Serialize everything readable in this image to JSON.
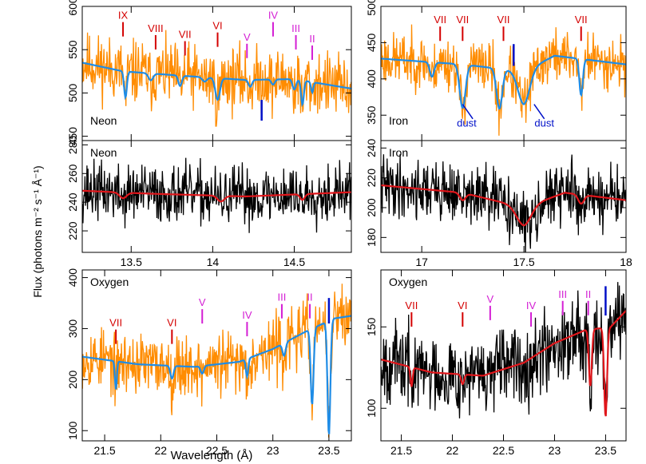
{
  "figure": {
    "ylabel": "Flux (photons m⁻² s⁻¹ Å⁻¹)",
    "xlabel_bottom": "Wavelength (Å)"
  },
  "colors": {
    "orange": "#ff8c00",
    "blue_model": "#1e8ce6",
    "red_model": "#e0161b",
    "red_label": "#d40000",
    "magenta_label": "#d41ed4",
    "dark_blue": "#0010c8",
    "black": "#000000"
  },
  "chart_data": [
    {
      "id": "neon-top",
      "type": "line",
      "panel_label": "Neon",
      "xlim": [
        13.2,
        14.85
      ],
      "ylim": [
        445,
        600
      ],
      "yticks": [
        450,
        500,
        550,
        600
      ],
      "xticks": [
        13.5,
        14,
        14.5
      ],
      "show_xtick_labels": false,
      "data_color": "orange",
      "model_color": "blue_model",
      "baseline": 528,
      "slope": -6,
      "noise": 18,
      "seed": 11,
      "model": {
        "base": [
          [
            13.2,
            535
          ],
          [
            13.45,
            525
          ],
          [
            13.8,
            520
          ],
          [
            14.2,
            515
          ],
          [
            14.5,
            516
          ],
          [
            14.85,
            505
          ]
        ],
        "absorptions": [
          {
            "c": 13.465,
            "d": 30,
            "w": 0.012
          },
          {
            "c": 13.62,
            "d": 8,
            "w": 0.02
          },
          {
            "c": 13.8,
            "d": 12,
            "w": 0.015
          },
          {
            "c": 13.95,
            "d": 5,
            "w": 0.02
          },
          {
            "c": 14.03,
            "d": 25,
            "w": 0.02
          },
          {
            "c": 14.23,
            "d": 8,
            "w": 0.015
          },
          {
            "c": 14.37,
            "d": 6,
            "w": 0.015
          },
          {
            "c": 14.5,
            "d": 12,
            "w": 0.015
          },
          {
            "c": 14.55,
            "d": 28,
            "w": 0.012
          },
          {
            "c": 14.61,
            "d": 12,
            "w": 0.01
          }
        ]
      },
      "ion_labels": [
        {
          "text": "IX",
          "x": 13.45,
          "color": "red_label",
          "y": 580
        },
        {
          "text": "VIII",
          "x": 13.65,
          "color": "red_label",
          "y": 565
        },
        {
          "text": "VII",
          "x": 13.83,
          "color": "red_label",
          "y": 558
        },
        {
          "text": "VI",
          "x": 14.03,
          "color": "red_label",
          "y": 568
        },
        {
          "text": "V",
          "x": 14.21,
          "color": "magenta_label",
          "y": 555
        },
        {
          "text": "IV",
          "x": 14.37,
          "color": "magenta_label",
          "y": 580
        },
        {
          "text": "III",
          "x": 14.51,
          "color": "magenta_label",
          "y": 565
        },
        {
          "text": "II",
          "x": 14.61,
          "color": "magenta_label",
          "y": 553
        }
      ],
      "blue_markers": [
        {
          "x": 14.3,
          "y1": 468,
          "y2": 492
        }
      ],
      "dust_labels": []
    },
    {
      "id": "iron-top",
      "type": "line",
      "panel_label": "Iron",
      "xlim": [
        16.8,
        18.0
      ],
      "ylim": [
        315,
        500
      ],
      "yticks": [
        350,
        400,
        450,
        500
      ],
      "xticks": [
        17,
        17.5,
        18
      ],
      "show_xtick_labels": false,
      "data_color": "orange",
      "model_color": "blue_model",
      "baseline": 425,
      "slope": 0,
      "noise": 18,
      "seed": 23,
      "model": {
        "base": [
          [
            16.8,
            428
          ],
          [
            17.2,
            420
          ],
          [
            17.5,
            410
          ],
          [
            17.65,
            432
          ],
          [
            18.0,
            420
          ]
        ],
        "absorptions": [
          {
            "c": 17.05,
            "d": 20,
            "w": 0.015
          },
          {
            "c": 17.2,
            "d": 60,
            "w": 0.02
          },
          {
            "c": 17.38,
            "d": 55,
            "w": 0.02
          },
          {
            "c": 17.5,
            "d": 45,
            "w": 0.04
          },
          {
            "c": 17.78,
            "d": 50,
            "w": 0.012
          }
        ]
      },
      "ion_labels": [
        {
          "text": "VII",
          "x": 17.09,
          "color": "red_label",
          "y": 470
        },
        {
          "text": "VII",
          "x": 17.2,
          "color": "red_label",
          "y": 470
        },
        {
          "text": "VII",
          "x": 17.4,
          "color": "red_label",
          "y": 470
        },
        {
          "text": "VII",
          "x": 17.78,
          "color": "red_label",
          "y": 470
        }
      ],
      "blue_markers": [
        {
          "x": 17.45,
          "y1": 418,
          "y2": 448
        }
      ],
      "dust_labels": [
        {
          "text": "dust",
          "x": 17.22,
          "y": 334,
          "lx1": 17.2,
          "ly1": 365,
          "lx2": 17.25,
          "ly2": 345
        },
        {
          "text": "dust",
          "x": 17.6,
          "y": 334,
          "lx1": 17.55,
          "ly1": 365,
          "lx2": 17.6,
          "ly2": 345
        }
      ]
    },
    {
      "id": "neon-mid",
      "type": "line",
      "panel_label": "Neon",
      "xlim": [
        13.2,
        14.85
      ],
      "ylim": [
        205,
        283
      ],
      "yticks": [
        220,
        240,
        260,
        280
      ],
      "xticks": [
        13.5,
        14,
        14.5
      ],
      "show_xtick_labels": true,
      "data_color": "black",
      "model_color": "red_model",
      "baseline": 245,
      "slope": 0,
      "noise": 10,
      "seed": 37,
      "model": {
        "base": [
          [
            13.2,
            248
          ],
          [
            13.6,
            246
          ],
          [
            14.2,
            244
          ],
          [
            14.85,
            247
          ]
        ],
        "absorptions": [
          {
            "c": 13.45,
            "d": 4,
            "w": 0.03
          },
          {
            "c": 14.05,
            "d": 4,
            "w": 0.03
          },
          {
            "c": 14.55,
            "d": 4,
            "w": 0.02
          }
        ]
      },
      "ion_labels": [],
      "blue_markers": [],
      "dust_labels": []
    },
    {
      "id": "iron-mid",
      "type": "line",
      "panel_label": "Iron",
      "xlim": [
        16.8,
        18.0
      ],
      "ylim": [
        170,
        245
      ],
      "yticks": [
        180,
        200,
        220,
        240
      ],
      "xticks": [
        17,
        17.5,
        18
      ],
      "show_xtick_labels": true,
      "data_color": "black",
      "model_color": "red_model",
      "baseline": 205,
      "slope": 0,
      "noise": 10,
      "seed": 41,
      "model": {
        "base": [
          [
            16.8,
            215
          ],
          [
            17.2,
            210
          ],
          [
            17.5,
            200
          ],
          [
            17.7,
            210
          ],
          [
            18.0,
            205
          ]
        ],
        "absorptions": [
          {
            "c": 17.2,
            "d": 5,
            "w": 0.02
          },
          {
            "c": 17.5,
            "d": 12,
            "w": 0.05
          },
          {
            "c": 17.78,
            "d": 6,
            "w": 0.02
          }
        ]
      },
      "ion_labels": [],
      "blue_markers": [],
      "dust_labels": []
    },
    {
      "id": "oxygen-bottom-left",
      "type": "line",
      "panel_label": "Oxygen",
      "xlim": [
        21.3,
        23.7
      ],
      "ylim": [
        80,
        415
      ],
      "yticks": [
        100,
        200,
        300,
        400
      ],
      "xticks": [
        21.5,
        22,
        22.5,
        23,
        23.5
      ],
      "show_xtick_labels": true,
      "data_color": "orange",
      "model_color": "blue_model",
      "baseline": 235,
      "slope": 30,
      "noise": 30,
      "seed": 53,
      "model": {
        "base": [
          [
            21.3,
            245
          ],
          [
            21.8,
            230
          ],
          [
            22.3,
            225
          ],
          [
            22.7,
            235
          ],
          [
            23.0,
            260
          ],
          [
            23.3,
            295
          ],
          [
            23.55,
            320
          ],
          [
            23.7,
            325
          ]
        ],
        "absorptions": [
          {
            "c": 21.6,
            "d": 55,
            "w": 0.012
          },
          {
            "c": 22.1,
            "d": 25,
            "w": 0.02
          },
          {
            "c": 22.37,
            "d": 15,
            "w": 0.02
          },
          {
            "c": 22.77,
            "d": 35,
            "w": 0.015
          },
          {
            "c": 23.1,
            "d": 25,
            "w": 0.02
          },
          {
            "c": 23.35,
            "d": 150,
            "w": 0.018
          },
          {
            "c": 23.5,
            "d": 225,
            "w": 0.018
          }
        ]
      },
      "ion_labels": [
        {
          "text": "VII",
          "x": 21.6,
          "color": "red_label",
          "y": 295
        },
        {
          "text": "VI",
          "x": 22.1,
          "color": "red_label",
          "y": 295
        },
        {
          "text": "V",
          "x": 22.37,
          "color": "magenta_label",
          "y": 335
        },
        {
          "text": "IV",
          "x": 22.77,
          "color": "magenta_label",
          "y": 310
        },
        {
          "text": "III",
          "x": 23.08,
          "color": "magenta_label",
          "y": 345
        },
        {
          "text": "II",
          "x": 23.33,
          "color": "magenta_label",
          "y": 345
        }
      ],
      "blue_markers": [
        {
          "x": 23.5,
          "y1": 310,
          "y2": 360
        }
      ],
      "dust_labels": []
    },
    {
      "id": "oxygen-bottom-right",
      "type": "line",
      "panel_label": "Oxygen",
      "xlim": [
        21.3,
        23.7
      ],
      "ylim": [
        80,
        185
      ],
      "yticks": [
        100,
        150
      ],
      "xticks": [
        21.5,
        22,
        22.5,
        23,
        23.5
      ],
      "show_xtick_labels": true,
      "data_color": "black",
      "model_color": "red_model",
      "baseline": 125,
      "slope": 10,
      "noise": 12,
      "seed": 67,
      "model": {
        "base": [
          [
            21.3,
            130
          ],
          [
            21.8,
            122
          ],
          [
            22.3,
            120
          ],
          [
            22.7,
            128
          ],
          [
            23.0,
            140
          ],
          [
            23.3,
            148
          ],
          [
            23.55,
            150
          ],
          [
            23.7,
            160
          ]
        ],
        "absorptions": [
          {
            "c": 21.6,
            "d": 12,
            "w": 0.015
          },
          {
            "c": 22.1,
            "d": 6,
            "w": 0.02
          },
          {
            "c": 23.35,
            "d": 35,
            "w": 0.02
          },
          {
            "c": 23.5,
            "d": 55,
            "w": 0.02
          }
        ]
      },
      "ion_labels": [
        {
          "text": "VII",
          "x": 21.6,
          "color": "red_label",
          "y": 158
        },
        {
          "text": "VI",
          "x": 22.1,
          "color": "red_label",
          "y": 158
        },
        {
          "text": "V",
          "x": 22.37,
          "color": "magenta_label",
          "y": 162
        },
        {
          "text": "IV",
          "x": 22.77,
          "color": "magenta_label",
          "y": 158
        },
        {
          "text": "III",
          "x": 23.08,
          "color": "magenta_label",
          "y": 165
        },
        {
          "text": "II",
          "x": 23.33,
          "color": "magenta_label",
          "y": 165
        }
      ],
      "blue_markers": [
        {
          "x": 23.5,
          "y1": 157,
          "y2": 175
        }
      ],
      "dust_labels": []
    }
  ]
}
